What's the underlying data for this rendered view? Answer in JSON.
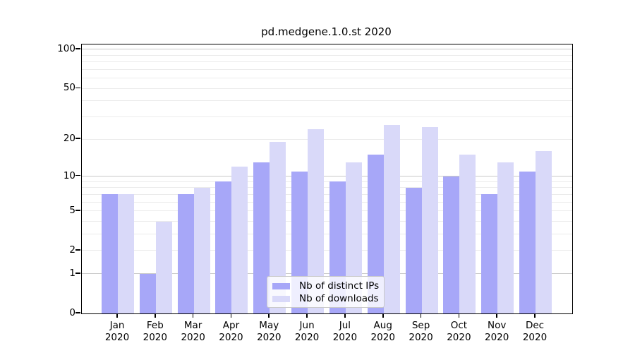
{
  "title": "pd.medgene.1.0.st 2020",
  "chart_data": {
    "type": "bar",
    "y_scale": "log10(1+x)",
    "categories": [
      "Jan",
      "Feb",
      "Mar",
      "Apr",
      "May",
      "Jun",
      "Jul",
      "Aug",
      "Sep",
      "Oct",
      "Nov",
      "Dec"
    ],
    "year_label": "2020",
    "series": [
      {
        "name": "Nb of distinct IPs",
        "color": "#a7a7f8",
        "values": [
          7,
          1,
          7,
          9,
          13,
          11,
          9,
          15,
          8,
          10,
          7,
          11
        ]
      },
      {
        "name": "Nb of downloads",
        "color": "#d9d9f9",
        "values": [
          7,
          4,
          8,
          12,
          19,
          24,
          13,
          26,
          25,
          15,
          13,
          16
        ]
      }
    ],
    "y_ticks": [
      0,
      1,
      2,
      5,
      10,
      20,
      50,
      100
    ],
    "major_gridlines": [
      1,
      10,
      100
    ],
    "minor_gridlines": [
      2,
      3,
      4,
      5,
      6,
      7,
      8,
      9,
      20,
      30,
      40,
      50,
      60,
      70,
      80,
      90
    ],
    "ylim": [
      0,
      109
    ],
    "grid": true,
    "legend_position": "lower-center-inside"
  }
}
